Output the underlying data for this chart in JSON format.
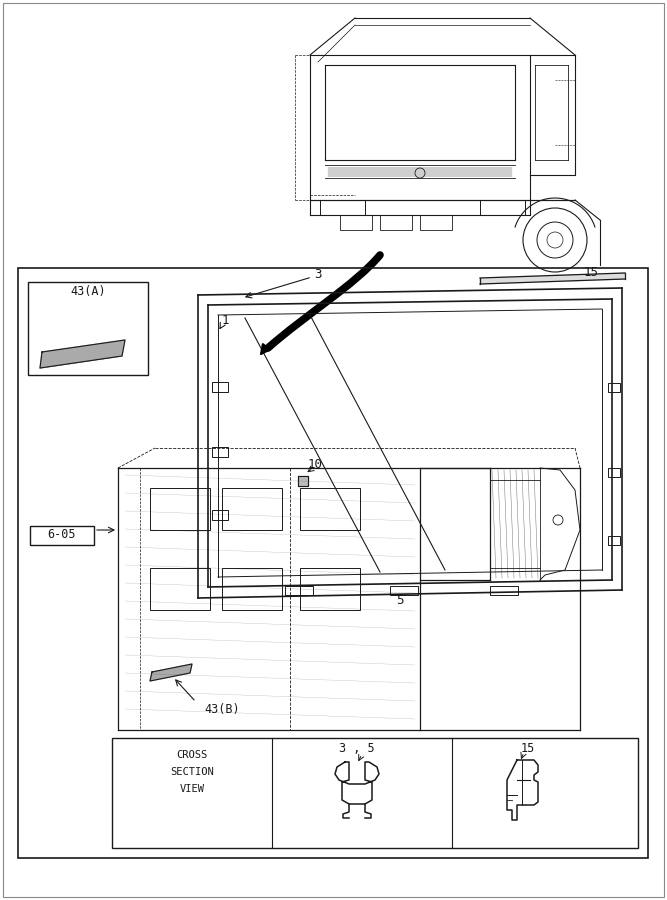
{
  "bg_color": "#ffffff",
  "line_color": "#1a1a1a",
  "fig_width": 6.67,
  "fig_height": 9.0,
  "labels": {
    "43A": "43(A)",
    "43B": "43(B)",
    "1": "1",
    "3": "3",
    "5": "5",
    "10": "10",
    "15": "15",
    "6_05": "6-05"
  },
  "cross_section_text": [
    "CROSS",
    "SECTION",
    "VIEW"
  ],
  "cross_section_label_35": "3 , 5",
  "cross_section_label_15": "15"
}
